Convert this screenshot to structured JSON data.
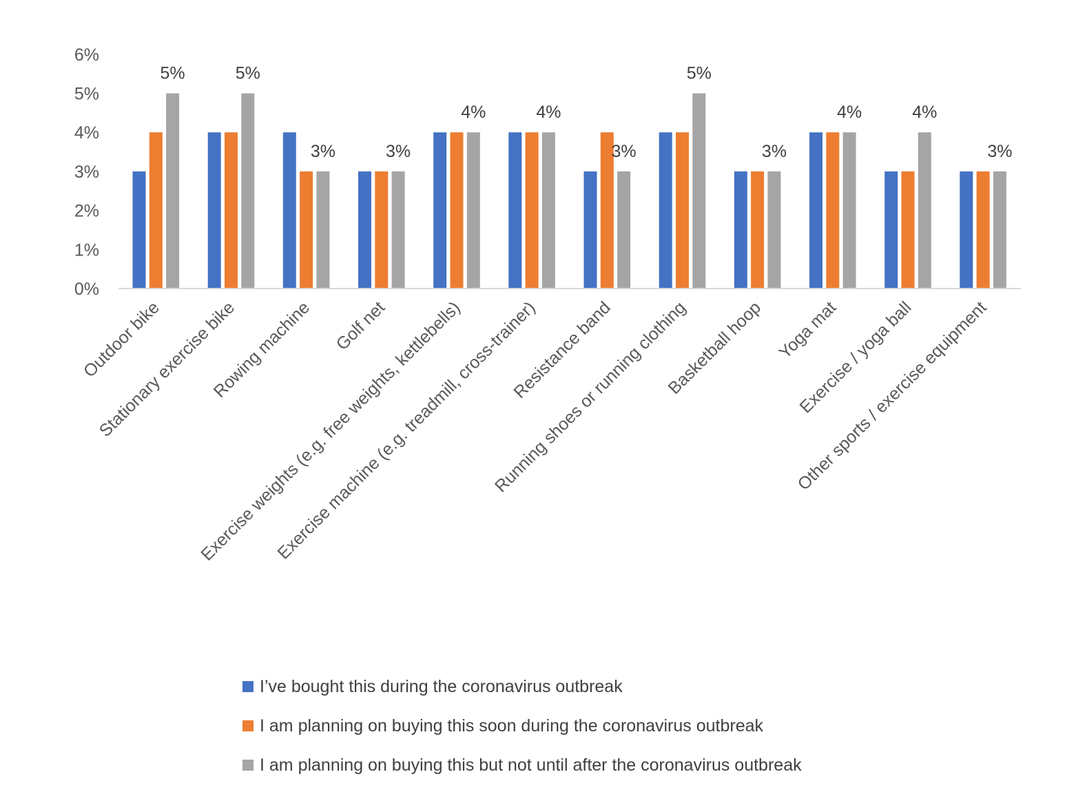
{
  "chart_data": {
    "type": "bar",
    "title": "",
    "xlabel": "",
    "ylabel": "",
    "ylim": [
      0,
      6
    ],
    "grid": false,
    "legend_position": "bottom",
    "y_ticks": [
      "0%",
      "1%",
      "2%",
      "3%",
      "4%",
      "5%",
      "6%"
    ],
    "categories": [
      "Outdoor bike",
      "Stationary exercise bike",
      "Rowing machine",
      "Golf net",
      "Exercise weights (e.g. free weights, kettlebells)",
      "Exercise machine (e.g. treadmill, cross-trainer)",
      "Resistance band",
      "Running shoes or running clothing",
      "Basketball hoop",
      "Yoga mat",
      "Exercise / yoga ball",
      "Other sports / exercise equipment"
    ],
    "series": [
      {
        "name": "I’ve bought this during the coronavirus outbreak",
        "color": "#4472C4",
        "values": [
          3,
          4,
          4,
          3,
          4,
          4,
          3,
          4,
          3,
          4,
          3,
          3
        ]
      },
      {
        "name": "I am planning on buying this soon during the coronavirus outbreak",
        "color": "#ED7D31",
        "values": [
          4,
          4,
          3,
          3,
          4,
          4,
          4,
          4,
          3,
          4,
          3,
          3
        ]
      },
      {
        "name": "I am planning on buying this but not until after the coronavirus outbreak",
        "color": "#A5A5A5",
        "values": [
          5,
          5,
          3,
          3,
          4,
          4,
          3,
          5,
          3,
          4,
          4,
          3
        ]
      }
    ],
    "data_labels": [
      "5%",
      "5%",
      "3%",
      "3%",
      "4%",
      "4%",
      "3%",
      "5%",
      "3%",
      "4%",
      "4%",
      "3%"
    ]
  }
}
